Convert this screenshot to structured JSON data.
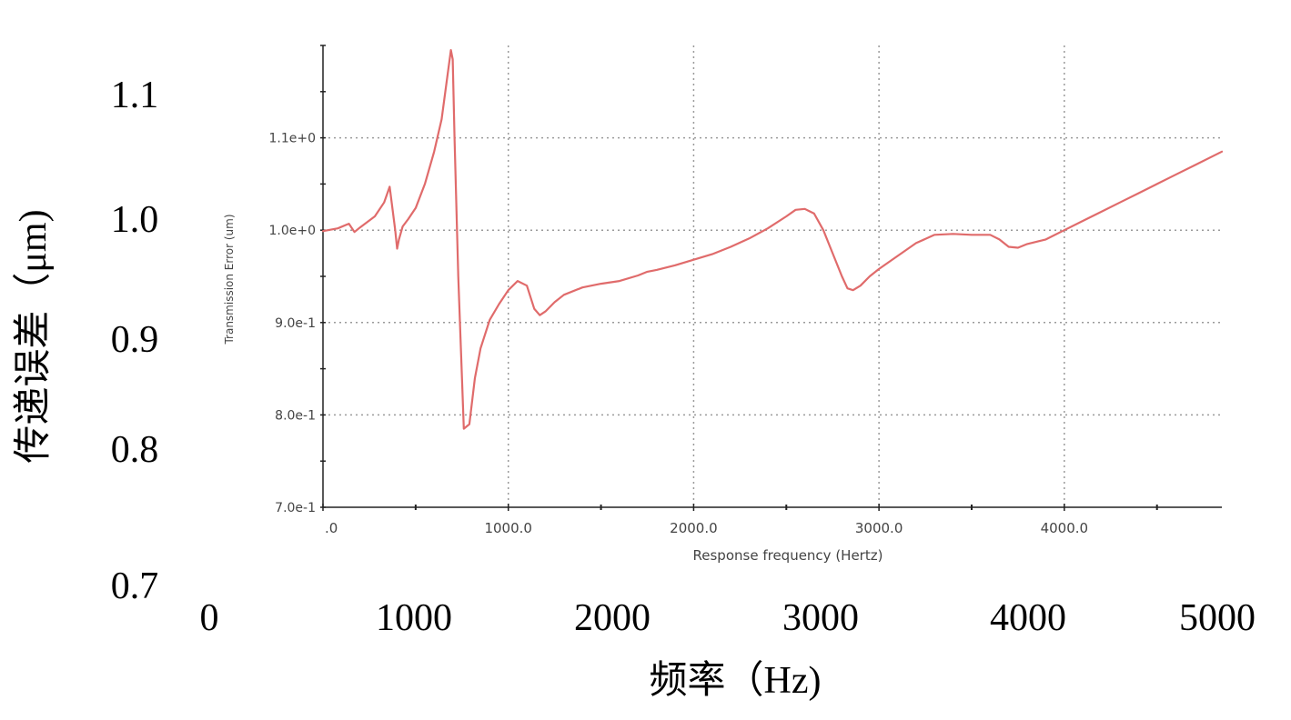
{
  "chart_data": {
    "type": "line",
    "outer_axes": {
      "xlabel": "频率（Hz)",
      "ylabel": "传递误差（μm)",
      "x_ticks": [
        "0",
        "1000",
        "2000",
        "3000",
        "4000",
        "5000"
      ],
      "y_ticks": [
        "0.7",
        "0.8",
        "0.9",
        "1.0",
        "1.1"
      ]
    },
    "inner_axes": {
      "xlabel": "Response frequency (Hertz)",
      "ylabel": "Transmission Error (um)",
      "x_ticks": [
        ".0",
        "1000.0",
        "2000.0",
        "3000.0",
        "4000.0"
      ],
      "y_ticks": [
        "7.0e-1",
        "8.0e-1",
        "9.0e-1",
        "1.0e+0",
        "1.1e+0"
      ],
      "xlim": [
        0,
        4850
      ],
      "ylim": [
        0.7,
        1.2
      ],
      "grid": true
    },
    "series": [
      {
        "color": "#e06b6b",
        "x": [
          0,
          80,
          140,
          170,
          200,
          280,
          330,
          360,
          390,
          400,
          410,
          430,
          460,
          500,
          550,
          600,
          640,
          670,
          690,
          700,
          710,
          730,
          760,
          790,
          820,
          850,
          900,
          950,
          1000,
          1050,
          1100,
          1140,
          1170,
          1200,
          1250,
          1300,
          1400,
          1500,
          1600,
          1700,
          1750,
          1800,
          1900,
          2000,
          2100,
          2200,
          2300,
          2400,
          2500,
          2550,
          2600,
          2650,
          2700,
          2750,
          2800,
          2830,
          2860,
          2900,
          2950,
          3000,
          3100,
          3200,
          3300,
          3400,
          3500,
          3600,
          3650,
          3700,
          3750,
          3800,
          3900,
          4000,
          4100,
          4200,
          4300,
          4400,
          4500,
          4600,
          4700,
          4850
        ],
        "y": [
          0.999,
          1.002,
          1.007,
          0.998,
          1.003,
          1.015,
          1.03,
          1.047,
          1.0,
          0.98,
          0.99,
          1.004,
          1.012,
          1.024,
          1.05,
          1.085,
          1.12,
          1.165,
          1.195,
          1.185,
          1.1,
          0.95,
          0.785,
          0.79,
          0.84,
          0.872,
          0.903,
          0.92,
          0.935,
          0.945,
          0.94,
          0.915,
          0.908,
          0.912,
          0.922,
          0.93,
          0.938,
          0.942,
          0.945,
          0.951,
          0.955,
          0.957,
          0.962,
          0.968,
          0.974,
          0.982,
          0.991,
          1.002,
          1.015,
          1.022,
          1.023,
          1.018,
          1.0,
          0.975,
          0.95,
          0.937,
          0.935,
          0.94,
          0.95,
          0.958,
          0.972,
          0.986,
          0.995,
          0.996,
          0.995,
          0.995,
          0.99,
          0.982,
          0.981,
          0.985,
          0.99,
          1.0,
          1.01,
          1.02,
          1.03,
          1.04,
          1.05,
          1.06,
          1.07,
          1.085
        ]
      }
    ]
  }
}
